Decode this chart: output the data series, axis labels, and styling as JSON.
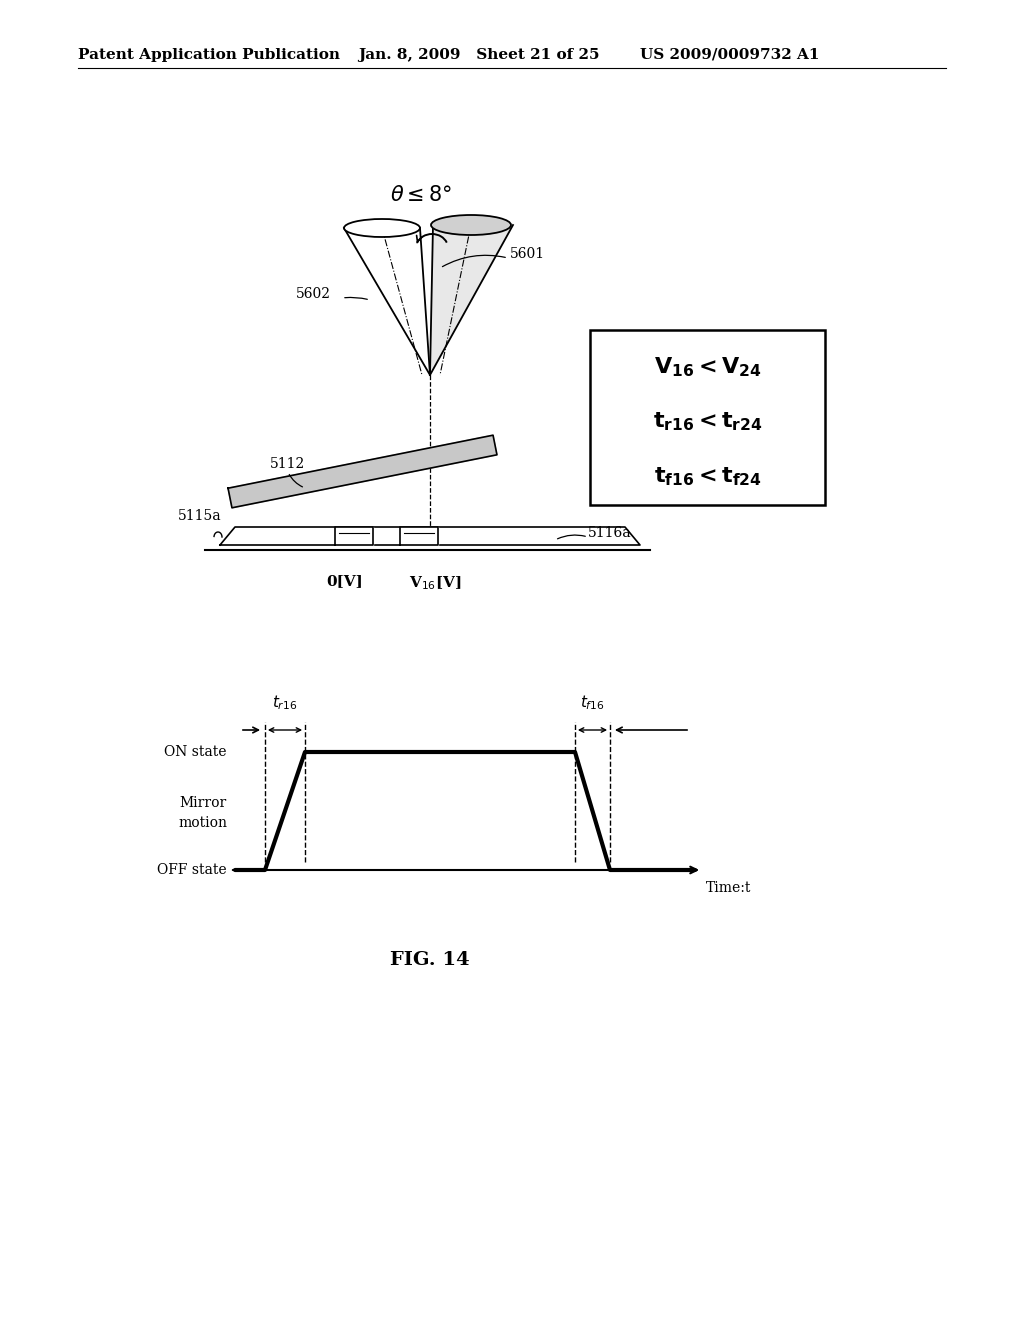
{
  "bg_color": "#ffffff",
  "header_left": "Patent Application Publication",
  "header_mid": "Jan. 8, 2009   Sheet 21 of 25",
  "header_right": "US 2009/0009732 A1",
  "fig_label": "FIG. 14",
  "label_5601": "5601",
  "label_5602": "5602",
  "label_5112": "5112",
  "label_5115a": "5115a",
  "label_5116a": "5116a",
  "label_0V": "0[V]",
  "label_V16": "V$_{16}$[V]",
  "label_on": "ON state",
  "label_mirror1": "Mirror",
  "label_mirror2": "motion",
  "label_off": "OFF state",
  "label_time": "Time:t"
}
